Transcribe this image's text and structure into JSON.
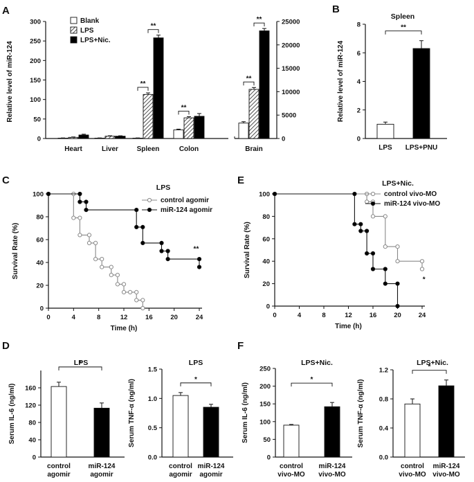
{
  "colors": {
    "ink": "#111111",
    "white": "#ffffff",
    "black": "#000000",
    "grey": "#888888",
    "hatch": "#222222"
  },
  "chart_data": [
    {
      "panel": "A",
      "type": "bar",
      "title": "",
      "ylabel": "Relative level of miR-124",
      "ylim_left": [
        0,
        300
      ],
      "yticks_left": [
        0,
        50,
        100,
        150,
        200,
        250,
        300
      ],
      "ylim_right": [
        0,
        25000
      ],
      "yticks_right": [
        0,
        5000,
        10000,
        15000,
        20000,
        25000
      ],
      "legend": [
        "Blank",
        "LPS",
        "LPS+Nic."
      ],
      "series_styles": [
        "white",
        "hatched",
        "black"
      ],
      "groups": [
        {
          "name": "Heart",
          "axis": "left",
          "values": [
            1,
            3,
            9
          ],
          "errors": [
            0.5,
            1,
            2
          ],
          "sig": []
        },
        {
          "name": "Liver",
          "axis": "left",
          "values": [
            1,
            6,
            6
          ],
          "errors": [
            0.5,
            1,
            1
          ],
          "sig": []
        },
        {
          "name": "Spleen",
          "axis": "left",
          "values": [
            1,
            113,
            258
          ],
          "errors": [
            0.5,
            4,
            7
          ],
          "sig": [
            "**",
            "**"
          ]
        },
        {
          "name": "Colon",
          "axis": "left",
          "values": [
            22,
            53,
            57
          ],
          "errors": [
            2,
            3,
            7
          ],
          "sig": [
            "**"
          ]
        },
        {
          "name": "Brain",
          "axis": "right",
          "values": [
            3300,
            10500,
            23000
          ],
          "errors": [
            300,
            400,
            500
          ],
          "sig": [
            "**",
            "**"
          ]
        }
      ]
    },
    {
      "panel": "B",
      "type": "bar",
      "title": "Spleen",
      "ylabel": "Relative level of miR-124",
      "ylim": [
        0,
        8
      ],
      "yticks": [
        0,
        2,
        4,
        6,
        8
      ],
      "categories": [
        "LPS",
        "LPS+PNU"
      ],
      "values": [
        1.0,
        6.3
      ],
      "errors": [
        0.15,
        0.55
      ],
      "fills": [
        "white",
        "black"
      ],
      "sig": "**"
    },
    {
      "panel": "C",
      "type": "line",
      "title": "LPS",
      "xlabel": "Time (h)",
      "ylabel": "Survival Rate (%)",
      "xlim": [
        0,
        24
      ],
      "xticks": [
        0,
        4,
        8,
        12,
        16,
        20,
        24
      ],
      "ylim": [
        0,
        100
      ],
      "yticks": [
        0,
        20,
        40,
        60,
        80,
        100
      ],
      "sig": "**",
      "series": [
        {
          "name": "control agomir",
          "marker": "open",
          "points": [
            [
              0,
              100
            ],
            [
              4,
              100
            ],
            [
              4,
              79
            ],
            [
              5,
              79
            ],
            [
              5,
              64
            ],
            [
              6.5,
              64
            ],
            [
              6.5,
              57
            ],
            [
              7.5,
              57
            ],
            [
              7.5,
              43
            ],
            [
              8.5,
              43
            ],
            [
              8.5,
              36
            ],
            [
              10,
              36
            ],
            [
              10,
              29
            ],
            [
              11,
              29
            ],
            [
              11,
              21
            ],
            [
              12,
              21
            ],
            [
              12,
              14
            ],
            [
              13,
              14
            ],
            [
              13,
              14
            ],
            [
              14,
              14
            ],
            [
              14,
              7
            ],
            [
              15,
              7
            ],
            [
              15,
              0
            ]
          ]
        },
        {
          "name": "miR-124 agomir",
          "marker": "filled",
          "points": [
            [
              0,
              100
            ],
            [
              5,
              100
            ],
            [
              5,
              93
            ],
            [
              6,
              93
            ],
            [
              6,
              86
            ],
            [
              14,
              86
            ],
            [
              14,
              71
            ],
            [
              15,
              71
            ],
            [
              15,
              57
            ],
            [
              18,
              57
            ],
            [
              18,
              50
            ],
            [
              19,
              50
            ],
            [
              19,
              43
            ],
            [
              24,
              43
            ],
            [
              24,
              36
            ]
          ]
        }
      ]
    },
    {
      "panel": "E",
      "type": "line",
      "title": "LPS+Nic.",
      "xlabel": "Time (h)",
      "ylabel": "Survival  Rate (%)",
      "xlim": [
        0,
        24
      ],
      "xticks": [
        0,
        4,
        8,
        12,
        16,
        20,
        24
      ],
      "ylim": [
        0,
        100
      ],
      "yticks": [
        0,
        20,
        40,
        60,
        80,
        100
      ],
      "sig": "*",
      "series": [
        {
          "name": "control vivo-MO",
          "marker": "open",
          "points": [
            [
              0,
              100
            ],
            [
              15,
              100
            ],
            [
              15,
              93
            ],
            [
              16,
              93
            ],
            [
              16,
              80
            ],
            [
              18,
              80
            ],
            [
              18,
              53
            ],
            [
              20,
              53
            ],
            [
              20,
              40
            ],
            [
              24,
              40
            ],
            [
              24,
              33
            ]
          ]
        },
        {
          "name": "miR-124 vivo-MO",
          "marker": "filled",
          "points": [
            [
              0,
              100
            ],
            [
              13,
              100
            ],
            [
              13,
              73
            ],
            [
              14,
              73
            ],
            [
              14,
              67
            ],
            [
              15,
              67
            ],
            [
              15,
              47
            ],
            [
              16,
              47
            ],
            [
              16,
              33
            ],
            [
              18,
              33
            ],
            [
              18,
              20
            ],
            [
              20,
              20
            ],
            [
              20,
              0
            ]
          ]
        }
      ]
    },
    {
      "panel": "D",
      "type": "bar",
      "title": "LPS",
      "ylabel": "Serum IL-6 (ng/ml)",
      "ylim": [
        0,
        200
      ],
      "yticks": [
        0,
        40,
        80,
        120,
        160
      ],
      "categories": [
        "control agomir",
        "miR-124 agomir"
      ],
      "values": [
        163,
        113
      ],
      "errors": [
        10,
        12
      ],
      "fills": [
        "white",
        "black"
      ],
      "sig": "*"
    },
    {
      "panel": "D",
      "type": "bar",
      "title": "LPS",
      "ylabel": "Serum TNF-α (ng/ml)",
      "ylim": [
        0,
        1.5
      ],
      "yticks": [
        0,
        0.5,
        1.0,
        1.5
      ],
      "tick_format": "0.0",
      "categories": [
        "control agomir",
        "miR-124 agomir"
      ],
      "values": [
        1.05,
        0.85
      ],
      "errors": [
        0.05,
        0.05
      ],
      "fills": [
        "white",
        "black"
      ],
      "sig": "*"
    },
    {
      "panel": "F",
      "type": "bar",
      "title": "LPS+Nic.",
      "ylabel": "Serum IL-6 (ng/ml)",
      "ylim": [
        0,
        250
      ],
      "yticks": [
        0,
        50,
        100,
        150,
        200,
        250
      ],
      "categories": [
        "control vivo-MO",
        "miR-124 vivo-MO"
      ],
      "values": [
        90,
        142
      ],
      "errors": [
        2,
        12
      ],
      "fills": [
        "white",
        "black"
      ],
      "sig": "*"
    },
    {
      "panel": "F",
      "type": "bar",
      "title": "LPS+Nic.",
      "ylabel": "Serum TNF-α (ng/ml)",
      "ylim": [
        0,
        1.2
      ],
      "yticks": [
        0,
        0.4,
        0.8,
        1.2
      ],
      "tick_format": "0.0",
      "categories": [
        "control vivo-MO",
        "miR-124 vivo-MO"
      ],
      "values": [
        0.73,
        0.98
      ],
      "errors": [
        0.07,
        0.08
      ],
      "fills": [
        "white",
        "black"
      ],
      "sig": "*"
    }
  ]
}
